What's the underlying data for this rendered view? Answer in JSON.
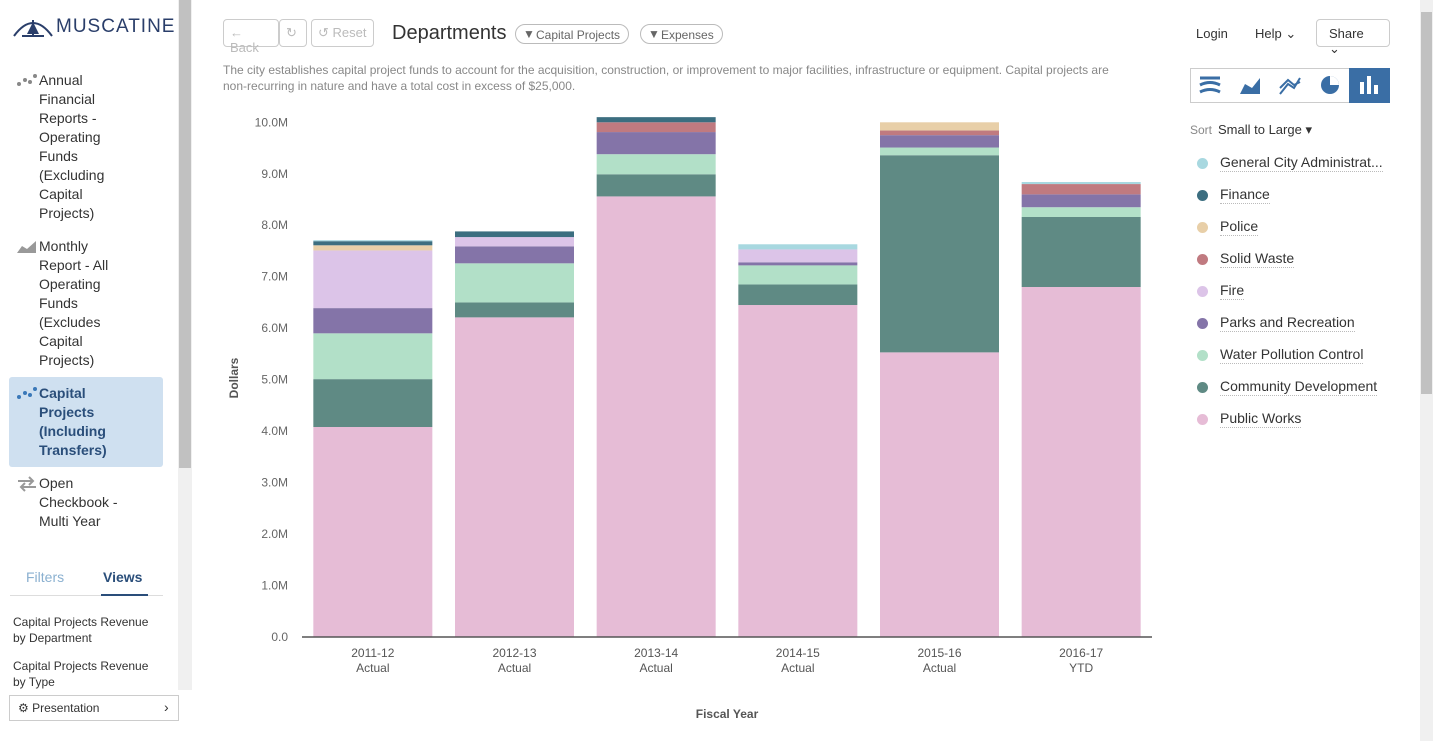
{
  "sidebar": {
    "logo": "MUSCATINE",
    "nav": [
      "Annual Financial Reports - Operating Funds (Excluding Capital Projects)",
      "Monthly Report - All Operating Funds (Excludes Capital Projects)",
      "Capital Projects (Including Transfers)",
      "Open Checkbook - Multi Year"
    ],
    "tabs": [
      "Filters",
      "Views"
    ],
    "views": [
      "Capital Projects Revenue by Department",
      "Capital Projects Revenue by Type"
    ],
    "presentation": "Presentation"
  },
  "toolbar": {
    "back": "Back",
    "reset": "Reset",
    "title": "Departments",
    "filters": [
      "Capital Projects",
      "Expenses"
    ],
    "login": "Login",
    "help": "Help",
    "share": "Share"
  },
  "description": "The city establishes capital project funds to account for the acquisition, construction, or improvement to major facilities, infrastructure or equipment. Capital projects are non-recurring in nature and have a total cost in excess of $25,000.",
  "sort": {
    "label": "Sort",
    "value": "Small to Large"
  },
  "chart_data": {
    "type": "bar",
    "stacked": true,
    "x_label": "Fiscal Year",
    "y_label": "Dollars",
    "categories": [
      "2011-12 Actual",
      "2012-13 Actual",
      "2013-14 Actual",
      "2014-15 Actual",
      "2015-16 Actual",
      "2016-17 YTD"
    ],
    "ylim": [
      0,
      10200000
    ],
    "yticks": [
      {
        "value": 0,
        "label": "0.0"
      },
      {
        "value": 1000000,
        "label": "1.0M"
      },
      {
        "value": 2000000,
        "label": "2.0M"
      },
      {
        "value": 3000000,
        "label": "3.0M"
      },
      {
        "value": 4000000,
        "label": "4.0M"
      },
      {
        "value": 5000000,
        "label": "5.0M"
      },
      {
        "value": 6000000,
        "label": "6.0M"
      },
      {
        "value": 7000000,
        "label": "7.0M"
      },
      {
        "value": 8000000,
        "label": "8.0M"
      },
      {
        "value": 9000000,
        "label": "9.0M"
      },
      {
        "value": 10000000,
        "label": "10.0M"
      }
    ],
    "grid": false,
    "series": [
      {
        "name": "Public Works",
        "color": "#e6bcd6",
        "values": [
          4080000,
          6210000,
          8560000,
          6450000,
          5530000,
          6800000
        ]
      },
      {
        "name": "Community Development",
        "color": "#5f8a84",
        "values": [
          930000,
          290000,
          430000,
          400000,
          3830000,
          1360000
        ]
      },
      {
        "name": "Water Pollution Control",
        "color": "#b2e0c8",
        "values": [
          890000,
          760000,
          390000,
          370000,
          150000,
          190000
        ]
      },
      {
        "name": "Parks and Recreation",
        "color": "#8474a8",
        "values": [
          490000,
          330000,
          430000,
          60000,
          240000,
          250000
        ]
      },
      {
        "name": "Fire",
        "color": "#dcc4e8",
        "values": [
          1120000,
          180000,
          0,
          250000,
          0,
          0
        ]
      },
      {
        "name": "Solid Waste",
        "color": "#c07a80",
        "values": [
          0,
          0,
          190000,
          0,
          90000,
          200000
        ]
      },
      {
        "name": "Police",
        "color": "#e8cfa8",
        "values": [
          100000,
          0,
          0,
          0,
          160000,
          0
        ]
      },
      {
        "name": "Finance",
        "color": "#3c6e80",
        "values": [
          80000,
          110000,
          100000,
          0,
          0,
          0
        ]
      },
      {
        "name": "General City Administrat...",
        "color": "#a8d8e0",
        "values": [
          20000,
          0,
          0,
          100000,
          0,
          40000
        ]
      }
    ]
  }
}
